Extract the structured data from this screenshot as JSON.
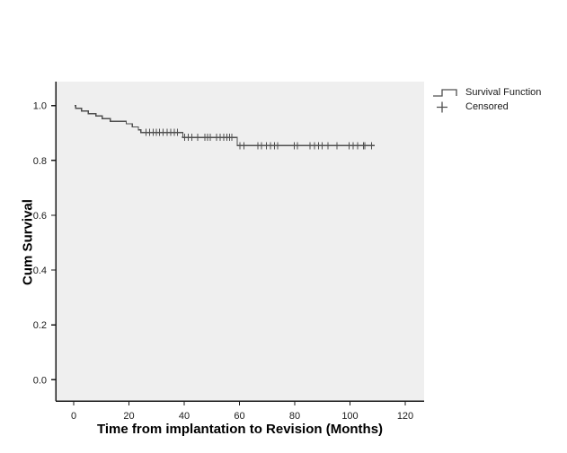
{
  "chart_data": {
    "type": "line",
    "variant": "kaplan_meier_survival_step",
    "title": "",
    "xlabel": "Time from implantation to Revision (Months)",
    "ylabel": "Cum Survival",
    "x_ticks": [
      0,
      20,
      40,
      60,
      80,
      100,
      120
    ],
    "y_ticks": [
      0.0,
      0.2,
      0.4,
      0.6,
      0.8,
      1.0
    ],
    "y_tick_labels": [
      "0.0",
      "0.2",
      "0.4",
      "0.6",
      "0.8",
      "1.0"
    ],
    "xlim": [
      0,
      127
    ],
    "ylim": [
      -0.08,
      1.08
    ],
    "grid": false,
    "legend_position": "outside-top-right",
    "legend_entries": [
      "Survival Function",
      "Censored"
    ],
    "plot_bg_color": "#efefef",
    "line_color": "#4f4f4f",
    "axis_color": "#1a1a1a",
    "series": [
      {
        "name": "Survival Function",
        "start": [
          0.3,
          1.0
        ],
        "steps": [
          [
            0.7,
            0.99
          ],
          [
            2.8,
            0.98
          ],
          [
            5.3,
            0.971
          ],
          [
            8.0,
            0.962
          ],
          [
            10.3,
            0.953
          ],
          [
            13.2,
            0.943
          ],
          [
            19.0,
            0.934
          ],
          [
            21.2,
            0.922
          ],
          [
            23.4,
            0.912
          ],
          [
            24.3,
            0.902
          ],
          [
            39.5,
            0.884
          ],
          [
            59.2,
            0.854
          ]
        ],
        "end_time": 109
      }
    ],
    "censored_points": [
      [
        26.1,
        0.902
      ],
      [
        27.5,
        0.902
      ],
      [
        28.8,
        0.902
      ],
      [
        29.9,
        0.902
      ],
      [
        31.1,
        0.902
      ],
      [
        32.4,
        0.902
      ],
      [
        33.8,
        0.902
      ],
      [
        35.1,
        0.902
      ],
      [
        36.5,
        0.902
      ],
      [
        37.6,
        0.902
      ],
      [
        40.2,
        0.884
      ],
      [
        41.4,
        0.884
      ],
      [
        42.7,
        0.884
      ],
      [
        44.9,
        0.884
      ],
      [
        47.4,
        0.884
      ],
      [
        48.5,
        0.884
      ],
      [
        49.5,
        0.884
      ],
      [
        51.7,
        0.884
      ],
      [
        53.0,
        0.884
      ],
      [
        54.3,
        0.884
      ],
      [
        55.4,
        0.884
      ],
      [
        56.5,
        0.884
      ],
      [
        57.3,
        0.884
      ],
      [
        60.1,
        0.854
      ],
      [
        61.7,
        0.854
      ],
      [
        66.6,
        0.854
      ],
      [
        68.0,
        0.854
      ],
      [
        69.8,
        0.854
      ],
      [
        71.2,
        0.854
      ],
      [
        72.7,
        0.854
      ],
      [
        73.9,
        0.854
      ],
      [
        79.9,
        0.854
      ],
      [
        81.0,
        0.854
      ],
      [
        85.5,
        0.854
      ],
      [
        87.2,
        0.854
      ],
      [
        88.6,
        0.854
      ],
      [
        89.9,
        0.854
      ],
      [
        92.0,
        0.854
      ],
      [
        95.3,
        0.854
      ],
      [
        99.6,
        0.854
      ],
      [
        101.2,
        0.854
      ],
      [
        102.7,
        0.854
      ],
      [
        104.8,
        0.854
      ],
      [
        105.4,
        0.854
      ],
      [
        107.8,
        0.854
      ]
    ]
  }
}
